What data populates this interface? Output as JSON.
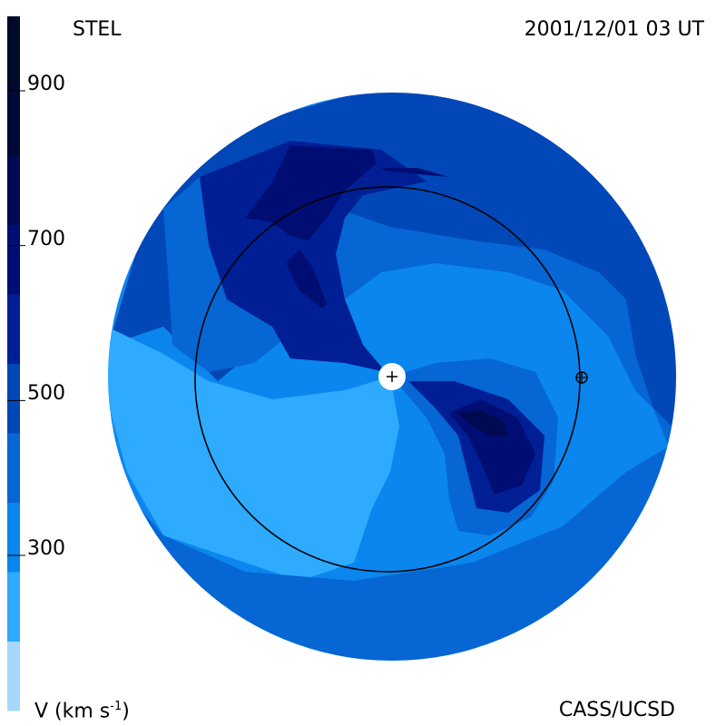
{
  "header": {
    "observatory": "STEL",
    "timestamp": "2001/12/01 03 UT"
  },
  "footer": {
    "credit": "CASS/UCSD",
    "units_label": "V (km s",
    "units_sup": "-1",
    "units_close": ")"
  },
  "colorbar": {
    "levels": [
      900,
      700,
      500,
      300
    ],
    "colors": [
      "#a6d8fb",
      "#2eaaff",
      "#0a86ee",
      "#0566d4",
      "#0247b7",
      "#011f95",
      "#000d73",
      "#000a52",
      "#000838",
      "#000a2a"
    ]
  },
  "map": {
    "center_marker": "sun-marker",
    "earth_marker": "earth-marker",
    "colors": {
      "background": "#2eaaff",
      "outer": "#0247b7",
      "mid": "#0566d4",
      "light": "#0a86ee",
      "lighter": "#2eaaff",
      "dark": "#011f95",
      "darker": "#000d73",
      "darkest": "#000a52",
      "orbit": "#000000"
    }
  }
}
